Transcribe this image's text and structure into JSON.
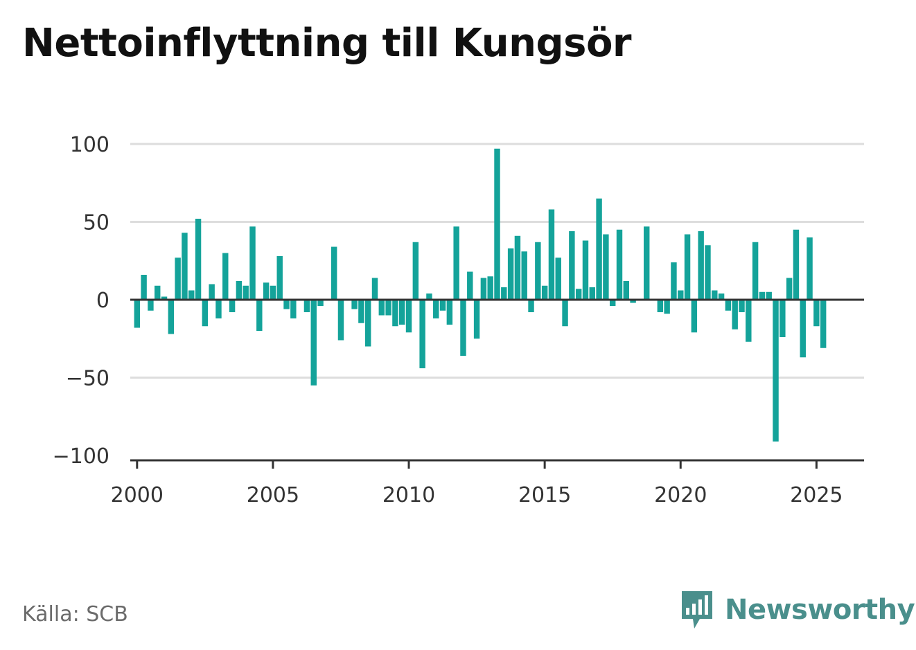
{
  "title": "Nettoinflyttning till Kungsör",
  "source": "Källa: SCB",
  "brand": {
    "name": "Newsworthy",
    "icon": "newsworthy-logo-icon"
  },
  "colors": {
    "bar": "#14a39a",
    "axis": "#333333",
    "grid": "#dddddd",
    "brand": "#4a8f8c"
  },
  "chart_data": {
    "type": "bar",
    "title": "Nettoinflyttning till Kungsör",
    "xlabel": "",
    "ylabel": "",
    "ylim": [
      -100,
      100
    ],
    "yticks": [
      100,
      50,
      0,
      -50,
      -100
    ],
    "ytick_labels": [
      "100",
      "50",
      "0",
      "−50",
      "−100"
    ],
    "xlim": [
      1999.75,
      2026.75
    ],
    "xticks": [
      2000,
      2005,
      2010,
      2015,
      2020,
      2025
    ],
    "xtick_labels": [
      "2000",
      "2005",
      "2010",
      "2015",
      "2020",
      "2025"
    ],
    "grid": true,
    "frequency": "quarterly",
    "start": "2000Q1",
    "values": [
      -18,
      16,
      -7,
      9,
      2,
      -22,
      27,
      43,
      6,
      52,
      -17,
      10,
      -12,
      30,
      -8,
      12,
      9,
      47,
      -20,
      11,
      9,
      28,
      -6,
      -12,
      0,
      -8,
      -55,
      -4,
      0,
      34,
      -26,
      0,
      -6,
      -15,
      -30,
      14,
      -10,
      -10,
      -17,
      -16,
      -21,
      37,
      -44,
      4,
      -12,
      -7,
      -16,
      47,
      -36,
      18,
      -25,
      14,
      15,
      97,
      8,
      33,
      41,
      31,
      -8,
      37,
      9,
      58,
      27,
      -17,
      44,
      7,
      38,
      8,
      65,
      42,
      -4,
      45,
      12,
      -2,
      0,
      47,
      0,
      -8,
      -9,
      24,
      6,
      42,
      -21,
      44,
      35,
      6,
      4,
      -7,
      -19,
      -8,
      -27,
      37,
      5,
      5,
      -91,
      -24,
      14,
      45,
      -37,
      40,
      -17,
      -31
    ]
  }
}
